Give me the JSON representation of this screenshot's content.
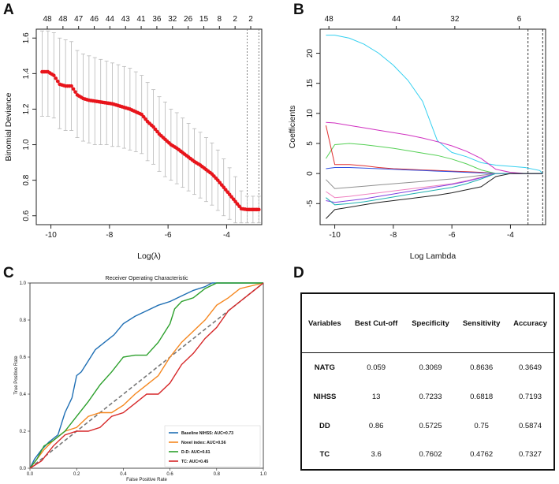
{
  "panels": {
    "A": "A",
    "B": "B",
    "C": "C",
    "D": "D"
  },
  "panelA": {
    "ylabel": "Binomial Deviance",
    "xlabel": "Log(λ)",
    "xticks": [
      "-10",
      "-8",
      "-6",
      "-4"
    ],
    "yticks": [
      "0.6",
      "0.8",
      "1.0",
      "1.2",
      "1.4",
      "1.6"
    ],
    "top_counts": [
      "48",
      "48",
      "47",
      "46",
      "44",
      "43",
      "41",
      "36",
      "32",
      "26",
      "15",
      "8",
      "2",
      "2"
    ]
  },
  "panelB": {
    "ylabel": "Coefficients",
    "xlabel": "Log Lambda",
    "xticks": [
      "-10",
      "-8",
      "-6",
      "-4"
    ],
    "yticks": [
      "-5",
      "0",
      "5",
      "10",
      "15",
      "20"
    ],
    "top_counts": [
      "48",
      "44",
      "32",
      "6"
    ]
  },
  "panelC": {
    "title": "Receiver Operating Characteristic",
    "xlabel": "False Positive Rate",
    "ylabel": "True Positive Rate",
    "ticks": [
      "0.0",
      "0.2",
      "0.4",
      "0.6",
      "0.8",
      "1.0"
    ],
    "legend": [
      {
        "label": "Baseline NIHSS: AUC=0.73",
        "color": "#1f6fb4"
      },
      {
        "label": "Novel index: AUC=0.56",
        "color": "#f5871f"
      },
      {
        "label": "D-D: AUC=0.61",
        "color": "#2ca02c"
      },
      {
        "label": "TC: AUC=0.45",
        "color": "#d62728"
      }
    ]
  },
  "table": {
    "headers": {
      "variables": "Variables",
      "cutoff": "Best Cut-off",
      "specificity": "Specificity",
      "sensitivity": "Sensitivity",
      "accuracy": "Accuracy"
    },
    "rows": [
      {
        "variable": "NATG",
        "cutoff": "0.059",
        "specificity": "0.3069",
        "sensitivity": "0.8636",
        "accuracy": "0.3649"
      },
      {
        "variable": "NIHSS",
        "cutoff": "13",
        "specificity": "0.7233",
        "sensitivity": "0.6818",
        "accuracy": "0.7193"
      },
      {
        "variable": "DD",
        "cutoff": "0.86",
        "specificity": "0.5725",
        "sensitivity": "0.75",
        "accuracy": "0.5874"
      },
      {
        "variable": "TC",
        "cutoff": "3.6",
        "specificity": "0.7602",
        "sensitivity": "0.4762",
        "accuracy": "0.7327"
      }
    ]
  },
  "chart_data": [
    {
      "type": "scatter",
      "title": "",
      "xlabel": "Log(λ)",
      "ylabel": "Binomial Deviance",
      "xlim": [
        -10.5,
        -2.8
      ],
      "ylim": [
        0.55,
        1.65
      ],
      "x": [
        -10.3,
        -10.1,
        -9.9,
        -9.7,
        -9.5,
        -9.3,
        -9.1,
        -8.9,
        -8.7,
        -8.5,
        -8.3,
        -8.1,
        -7.9,
        -7.7,
        -7.5,
        -7.3,
        -7.1,
        -6.9,
        -6.7,
        -6.5,
        -6.3,
        -6.1,
        -5.9,
        -5.7,
        -5.5,
        -5.3,
        -5.1,
        -4.9,
        -4.7,
        -4.5,
        -4.3,
        -4.1,
        -3.9,
        -3.7,
        -3.5,
        -3.3,
        -3.1,
        -2.9
      ],
      "y": [
        1.41,
        1.41,
        1.39,
        1.34,
        1.33,
        1.33,
        1.28,
        1.26,
        1.25,
        1.245,
        1.24,
        1.235,
        1.23,
        1.22,
        1.21,
        1.2,
        1.185,
        1.17,
        1.13,
        1.1,
        1.06,
        1.03,
        1.0,
        0.98,
        0.955,
        0.93,
        0.905,
        0.885,
        0.86,
        0.835,
        0.8,
        0.76,
        0.72,
        0.68,
        0.64,
        0.635,
        0.635,
        0.635
      ],
      "error_upper": [
        1.64,
        1.64,
        1.63,
        1.6,
        1.59,
        1.58,
        1.53,
        1.51,
        1.5,
        1.49,
        1.48,
        1.47,
        1.46,
        1.45,
        1.44,
        1.43,
        1.41,
        1.39,
        1.35,
        1.31,
        1.27,
        1.24,
        1.2,
        1.18,
        1.15,
        1.12,
        1.09,
        1.07,
        1.04,
        1.01,
        0.97,
        0.92,
        0.87,
        0.82,
        0.74,
        0.71,
        0.71,
        0.71
      ],
      "error_lower": [
        1.16,
        1.16,
        1.15,
        1.09,
        1.08,
        1.08,
        1.04,
        1.02,
        1.01,
        1.0,
        1.0,
        1.0,
        0.99,
        0.99,
        0.98,
        0.97,
        0.96,
        0.95,
        0.91,
        0.89,
        0.85,
        0.82,
        0.8,
        0.78,
        0.76,
        0.74,
        0.72,
        0.7,
        0.68,
        0.66,
        0.63,
        0.6,
        0.58,
        0.56,
        0.56,
        0.56,
        0.56,
        0.56
      ],
      "vlines": [
        -3.3,
        -2.9
      ],
      "top_axis": [
        "48",
        "48",
        "47",
        "46",
        "44",
        "43",
        "41",
        "36",
        "32",
        "26",
        "15",
        "8",
        "2",
        "2"
      ]
    },
    {
      "type": "line",
      "title": "",
      "xlabel": "Log Lambda",
      "ylabel": "Coefficients",
      "xlim": [
        -10.5,
        -2.8
      ],
      "ylim": [
        -8.5,
        24
      ],
      "vlines": [
        -3.4,
        -2.9
      ],
      "top_axis": [
        "48",
        "44",
        "32",
        "6"
      ],
      "x": [
        -10.3,
        -10,
        -9.5,
        -9,
        -8.5,
        -8,
        -7.5,
        -7,
        -6.5,
        -6,
        -5.5,
        -5,
        -4.5,
        -4,
        -3.5,
        -3,
        -2.9
      ],
      "series": [
        {
          "name": "cyan",
          "color": "#35d0f0",
          "values": [
            23,
            23,
            22.5,
            21.5,
            20,
            18,
            15.5,
            12,
            5.5,
            3.5,
            2.8,
            1.8,
            1.4,
            1.2,
            1.0,
            0.5,
            0
          ]
        },
        {
          "name": "magenta",
          "color": "#d030c0",
          "values": [
            8.5,
            8.4,
            8,
            7.6,
            7.2,
            6.8,
            6.4,
            5.9,
            5.3,
            4.6,
            3.7,
            2.5,
            0.7,
            0.2,
            0,
            0,
            0
          ]
        },
        {
          "name": "green",
          "color": "#55d055",
          "values": [
            2.5,
            4.8,
            5,
            4.8,
            4.5,
            4.2,
            3.8,
            3.4,
            3.0,
            2.4,
            1.6,
            0.6,
            0,
            0,
            0,
            0,
            0
          ]
        },
        {
          "name": "red",
          "color": "#e03030",
          "values": [
            8,
            1.5,
            1.5,
            1.3,
            1.0,
            0.8,
            0.7,
            0.6,
            0.5,
            0.4,
            0.3,
            0.2,
            0,
            0,
            0,
            0,
            0
          ]
        },
        {
          "name": "blue",
          "color": "#3050e0",
          "values": [
            0.8,
            1.0,
            1.0,
            0.9,
            0.8,
            0.7,
            0.6,
            0.5,
            0.4,
            0.3,
            0.2,
            0.1,
            0,
            0,
            0,
            0,
            0
          ]
        },
        {
          "name": "gray",
          "color": "#909090",
          "values": [
            -1,
            -2.5,
            -2.3,
            -2.1,
            -1.9,
            -1.7,
            -1.5,
            -1.3,
            -1.1,
            -0.9,
            -0.6,
            -0.3,
            0,
            0,
            0,
            0,
            0
          ]
        },
        {
          "name": "pink",
          "color": "#f080c0",
          "values": [
            -3,
            -4,
            -3.8,
            -3.5,
            -3.2,
            -2.9,
            -2.6,
            -2.3,
            -2.0,
            -1.7,
            -1.2,
            -0.6,
            0,
            0,
            0,
            0,
            0
          ]
        },
        {
          "name": "purple",
          "color": "#8040e0",
          "values": [
            -4.5,
            -4.8,
            -4.5,
            -4.2,
            -3.8,
            -3.4,
            -3.0,
            -2.6,
            -2.2,
            -1.8,
            -1.3,
            -0.7,
            0,
            0,
            0,
            0,
            0
          ]
        },
        {
          "name": "teal",
          "color": "#20b0b0",
          "values": [
            -4,
            -5.2,
            -5,
            -4.7,
            -4.3,
            -3.9,
            -3.5,
            -3.1,
            -2.7,
            -2.3,
            -1.7,
            -0.9,
            0,
            0,
            0,
            0,
            0
          ]
        },
        {
          "name": "black",
          "color": "#202020",
          "values": [
            -7.5,
            -6,
            -5.6,
            -5.2,
            -4.8,
            -4.5,
            -4.2,
            -3.9,
            -3.6,
            -3.2,
            -2.7,
            -2.2,
            -0.5,
            0,
            0,
            0,
            0
          ]
        }
      ]
    },
    {
      "type": "line",
      "title": "Receiver Operating Characteristic",
      "xlabel": "False Positive Rate",
      "ylabel": "True Positive Rate",
      "xlim": [
        0,
        1
      ],
      "ylim": [
        0,
        1
      ],
      "series": [
        {
          "name": "Baseline NIHSS: AUC=0.73",
          "color": "#1f6fb4",
          "x": [
            0,
            0.02,
            0.05,
            0.08,
            0.12,
            0.15,
            0.18,
            0.2,
            0.22,
            0.25,
            0.28,
            0.32,
            0.36,
            0.4,
            0.45,
            0.5,
            0.55,
            0.6,
            0.65,
            0.7,
            0.75,
            0.78,
            0.85,
            0.9,
            1.0
          ],
          "y": [
            0,
            0.05,
            0.1,
            0.14,
            0.18,
            0.3,
            0.38,
            0.5,
            0.52,
            0.58,
            0.64,
            0.68,
            0.72,
            0.78,
            0.82,
            0.85,
            0.88,
            0.9,
            0.93,
            0.96,
            0.98,
            1.0,
            1.0,
            1.0,
            1.0
          ]
        },
        {
          "name": "Novel index: AUC=0.56",
          "color": "#f5871f",
          "x": [
            0,
            0.03,
            0.06,
            0.1,
            0.15,
            0.2,
            0.25,
            0.3,
            0.35,
            0.4,
            0.45,
            0.5,
            0.55,
            0.6,
            0.65,
            0.7,
            0.75,
            0.8,
            0.85,
            0.9,
            1.0
          ],
          "y": [
            0,
            0.05,
            0.1,
            0.15,
            0.2,
            0.22,
            0.28,
            0.3,
            0.3,
            0.34,
            0.4,
            0.45,
            0.5,
            0.6,
            0.68,
            0.74,
            0.8,
            0.88,
            0.92,
            0.97,
            1.0
          ]
        },
        {
          "name": "D-D: AUC=0.61",
          "color": "#2ca02c",
          "x": [
            0,
            0.03,
            0.06,
            0.1,
            0.15,
            0.2,
            0.25,
            0.3,
            0.35,
            0.4,
            0.45,
            0.5,
            0.55,
            0.6,
            0.62,
            0.65,
            0.7,
            0.75,
            0.8,
            0.9,
            1.0
          ],
          "y": [
            0,
            0.05,
            0.12,
            0.15,
            0.2,
            0.28,
            0.36,
            0.45,
            0.52,
            0.6,
            0.61,
            0.61,
            0.68,
            0.78,
            0.86,
            0.9,
            0.92,
            0.97,
            1.0,
            1.0,
            1.0
          ]
        },
        {
          "name": "TC: AUC=0.45",
          "color": "#d62728",
          "x": [
            0,
            0.05,
            0.1,
            0.15,
            0.2,
            0.25,
            0.3,
            0.35,
            0.4,
            0.45,
            0.5,
            0.55,
            0.6,
            0.65,
            0.7,
            0.75,
            0.8,
            0.85,
            0.9,
            0.95,
            1.0
          ],
          "y": [
            0,
            0.04,
            0.12,
            0.18,
            0.2,
            0.2,
            0.22,
            0.28,
            0.3,
            0.35,
            0.4,
            0.4,
            0.46,
            0.56,
            0.62,
            0.7,
            0.76,
            0.85,
            0.9,
            0.95,
            1.0
          ]
        }
      ]
    }
  ]
}
